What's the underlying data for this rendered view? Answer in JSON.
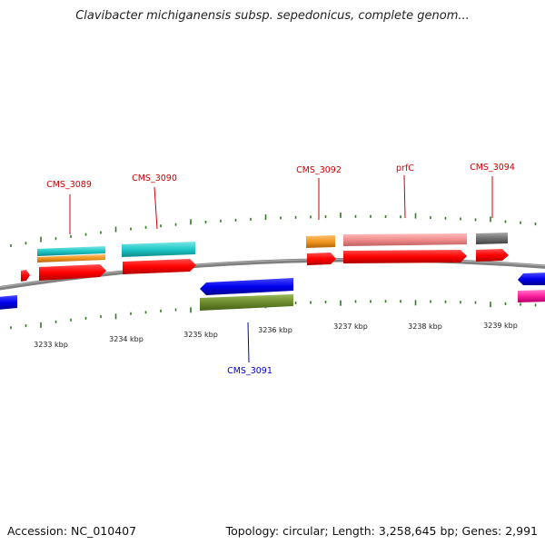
{
  "title": "Clavibacter michiganensis subsp. sepedonicus, complete genom...",
  "footer": {
    "accession": "Accession: NC_010407",
    "summary": "Topology: circular; Length: 3,258,645 bp; Genes: 2,991"
  },
  "scale_labels": [
    "3233 kbp",
    "3234 kbp",
    "3235 kbp",
    "3236 kbp",
    "3237 kbp",
    "3238 kbp",
    "3239 kbp"
  ],
  "gene_labels": {
    "cms3089": "CMS_3089",
    "cms3090": "CMS_3090",
    "cms3091": "CMS_3091",
    "cms3092": "CMS_3092",
    "prfC": "prfC",
    "cms3094": "CMS_3094"
  },
  "colors": {
    "backbone": "#808080",
    "tick": "#2e7d1e",
    "label_red": "#cc0000",
    "label_blue": "#0000cc",
    "red": "#ff0000",
    "blue": "#0000ee",
    "cyan": "#1ec8c8",
    "orange": "#f0961e",
    "salmon": "#f08c8c",
    "gray": "#707070",
    "olive": "#6b8c2a",
    "magenta": "#ff1e9e"
  }
}
